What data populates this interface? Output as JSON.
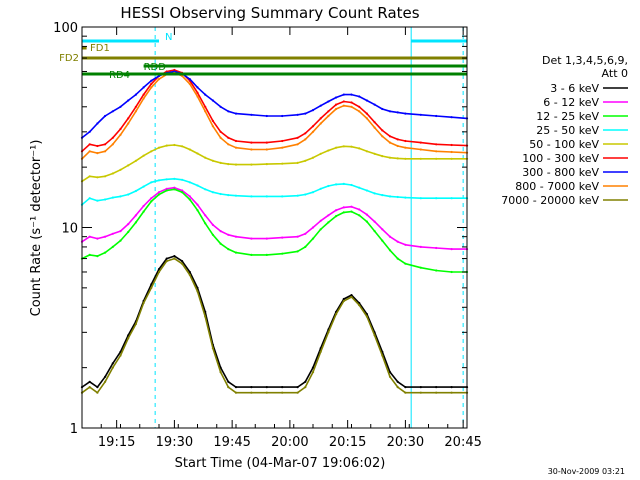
{
  "chart_data": {
    "type": "line",
    "title": "HESSI Observing Summary Count Rates",
    "xlabel": "Start Time (04-Mar-07 19:06:02)",
    "ylabel": "Count Rate (s⁻¹ detector⁻¹)",
    "footer_stamp": "30-Nov-2009 03:21",
    "x_unit": "minutes from 19:06:02",
    "xlim": [
      0,
      100
    ],
    "ylim": [
      1,
      100
    ],
    "yscale": "log",
    "grid": false,
    "legend_placement": "right",
    "xticks": [
      {
        "t": 9,
        "label": "19:15"
      },
      {
        "t": 24,
        "label": "19:30"
      },
      {
        "t": 39,
        "label": "19:45"
      },
      {
        "t": 54,
        "label": "20:00"
      },
      {
        "t": 69,
        "label": "20:15"
      },
      {
        "t": 84,
        "label": "20:30"
      },
      {
        "t": 99,
        "label": "20:45"
      }
    ],
    "yticks": [
      {
        "v": 1,
        "label": "1"
      },
      {
        "v": 10,
        "label": "10"
      },
      {
        "v": 100,
        "label": "100"
      }
    ],
    "legend_title": [
      "Det 1,3,4,5,6,9,",
      "Att 0"
    ],
    "series": [
      {
        "name": "3 - 6 keV",
        "color": "#000000",
        "t": [
          0,
          2,
          4,
          6,
          8,
          10,
          12,
          14,
          16,
          18,
          20,
          22,
          24,
          26,
          28,
          30,
          32,
          34,
          36,
          38,
          40,
          44,
          48,
          52,
          56,
          58,
          60,
          62,
          64,
          66,
          68,
          70,
          72,
          74,
          76,
          78,
          80,
          82,
          84,
          88,
          92,
          96,
          100
        ],
        "y": [
          1.6,
          1.7,
          1.6,
          1.8,
          2.1,
          2.4,
          2.9,
          3.4,
          4.3,
          5.2,
          6.2,
          7.0,
          7.2,
          6.8,
          6.0,
          5.0,
          3.8,
          2.6,
          2.0,
          1.7,
          1.6,
          1.6,
          1.6,
          1.6,
          1.6,
          1.7,
          2.0,
          2.5,
          3.1,
          3.8,
          4.4,
          4.6,
          4.2,
          3.7,
          3.0,
          2.4,
          1.9,
          1.7,
          1.6,
          1.6,
          1.6,
          1.6,
          1.6
        ]
      },
      {
        "name": "6 - 12 keV",
        "color": "#ff00ff",
        "t": [
          0,
          2,
          4,
          6,
          8,
          10,
          12,
          14,
          16,
          18,
          20,
          22,
          24,
          26,
          28,
          30,
          32,
          34,
          36,
          38,
          40,
          44,
          48,
          52,
          56,
          58,
          60,
          62,
          64,
          66,
          68,
          70,
          72,
          74,
          76,
          78,
          80,
          82,
          84,
          88,
          92,
          96,
          100
        ],
        "y": [
          8.5,
          9.0,
          8.8,
          9.0,
          9.3,
          9.6,
          10.4,
          11.5,
          12.8,
          14.0,
          15.0,
          15.6,
          15.8,
          15.3,
          14.3,
          13.0,
          11.5,
          10.3,
          9.6,
          9.2,
          9.0,
          8.8,
          8.8,
          8.9,
          9.0,
          9.3,
          10.0,
          10.8,
          11.5,
          12.2,
          12.6,
          12.7,
          12.3,
          11.6,
          10.7,
          9.8,
          9.0,
          8.5,
          8.2,
          8.0,
          7.9,
          7.8,
          7.8
        ]
      },
      {
        "name": "12 - 25 keV",
        "color": "#00ff00",
        "t": [
          0,
          2,
          4,
          6,
          8,
          10,
          12,
          14,
          16,
          18,
          20,
          22,
          24,
          26,
          28,
          30,
          32,
          34,
          36,
          38,
          40,
          44,
          48,
          52,
          56,
          58,
          60,
          62,
          64,
          66,
          68,
          70,
          72,
          74,
          76,
          78,
          80,
          82,
          84,
          88,
          92,
          96,
          100
        ],
        "y": [
          7.0,
          7.3,
          7.2,
          7.5,
          8.0,
          8.6,
          9.5,
          10.6,
          12.0,
          13.5,
          14.6,
          15.3,
          15.5,
          15.0,
          13.8,
          12.2,
          10.5,
          9.2,
          8.3,
          7.8,
          7.5,
          7.3,
          7.3,
          7.4,
          7.6,
          8.0,
          8.8,
          9.8,
          10.6,
          11.4,
          11.9,
          12.0,
          11.5,
          10.7,
          9.6,
          8.6,
          7.7,
          7.0,
          6.6,
          6.3,
          6.1,
          6.0,
          6.0
        ]
      },
      {
        "name": "25 - 50 keV",
        "color": "#00ffff",
        "t": [
          0,
          2,
          4,
          6,
          8,
          10,
          12,
          14,
          16,
          18,
          20,
          22,
          24,
          26,
          28,
          30,
          32,
          34,
          36,
          38,
          40,
          44,
          48,
          52,
          56,
          58,
          60,
          62,
          64,
          66,
          68,
          70,
          72,
          74,
          76,
          78,
          80,
          82,
          84,
          88,
          92,
          96,
          100
        ],
        "y": [
          13.0,
          14.0,
          13.6,
          13.8,
          14.1,
          14.3,
          14.6,
          15.2,
          16.0,
          16.8,
          17.2,
          17.4,
          17.5,
          17.3,
          16.8,
          16.2,
          15.5,
          15.0,
          14.7,
          14.5,
          14.4,
          14.3,
          14.3,
          14.3,
          14.4,
          14.6,
          15.0,
          15.6,
          16.1,
          16.4,
          16.5,
          16.3,
          15.8,
          15.3,
          14.8,
          14.5,
          14.3,
          14.2,
          14.1,
          14.0,
          14.0,
          14.0,
          14.0
        ]
      },
      {
        "name": "50 - 100 keV",
        "color": "#c8c800",
        "t": [
          0,
          2,
          4,
          6,
          8,
          10,
          12,
          14,
          16,
          18,
          20,
          22,
          24,
          26,
          28,
          30,
          32,
          34,
          36,
          38,
          40,
          44,
          48,
          52,
          56,
          58,
          60,
          62,
          64,
          66,
          68,
          70,
          72,
          74,
          76,
          78,
          80,
          82,
          84,
          88,
          92,
          96,
          100
        ],
        "y": [
          17.0,
          18.0,
          17.8,
          18.0,
          18.6,
          19.4,
          20.4,
          21.5,
          22.8,
          24.0,
          25.0,
          25.6,
          25.8,
          25.4,
          24.5,
          23.4,
          22.3,
          21.5,
          21.0,
          20.7,
          20.6,
          20.6,
          20.7,
          20.8,
          21.0,
          21.5,
          22.3,
          23.3,
          24.2,
          25.0,
          25.4,
          25.3,
          24.8,
          24.0,
          23.3,
          22.7,
          22.3,
          22.1,
          22.0,
          22.0,
          22.0,
          22.0,
          22.0
        ]
      },
      {
        "name": "100 - 300 keV",
        "color": "#ff0000",
        "t": [
          0,
          2,
          4,
          6,
          8,
          10,
          12,
          14,
          16,
          18,
          20,
          22,
          24,
          26,
          28,
          30,
          32,
          34,
          36,
          38,
          40,
          44,
          48,
          52,
          56,
          58,
          60,
          62,
          64,
          66,
          68,
          70,
          72,
          74,
          76,
          78,
          80,
          82,
          84,
          88,
          92,
          96,
          100
        ],
        "y": [
          24.0,
          26.0,
          25.5,
          26.0,
          28.0,
          31.0,
          35.0,
          40.0,
          46.0,
          52.0,
          57.0,
          60.0,
          61.0,
          59.0,
          54.0,
          47.0,
          40.0,
          34.0,
          30.0,
          28.0,
          27.0,
          26.5,
          26.5,
          27.0,
          28.0,
          29.5,
          32.0,
          35.0,
          38.0,
          41.0,
          42.5,
          42.0,
          40.0,
          37.0,
          33.5,
          30.5,
          28.5,
          27.5,
          27.0,
          26.5,
          26.0,
          25.8,
          25.6
        ]
      },
      {
        "name": "300 - 800 keV",
        "color": "#0000ff",
        "t": [
          0,
          2,
          4,
          6,
          8,
          10,
          12,
          14,
          16,
          18,
          20,
          22,
          24,
          26,
          28,
          30,
          32,
          34,
          36,
          38,
          40,
          44,
          48,
          52,
          56,
          58,
          60,
          62,
          64,
          66,
          68,
          70,
          72,
          74,
          76,
          78,
          80,
          82,
          84,
          88,
          92,
          96,
          100
        ],
        "y": [
          28.0,
          30.0,
          33.0,
          36.0,
          38.0,
          40.0,
          43.0,
          46.0,
          50.0,
          54.0,
          57.0,
          59.0,
          60.0,
          58.5,
          55.0,
          50.0,
          46.0,
          43.0,
          40.0,
          38.0,
          37.0,
          36.5,
          36.0,
          36.0,
          36.5,
          37.0,
          38.5,
          40.5,
          42.5,
          44.5,
          46.0,
          46.0,
          45.0,
          43.0,
          41.0,
          39.0,
          38.0,
          37.5,
          37.0,
          36.5,
          36.0,
          35.5,
          35.0
        ]
      },
      {
        "name": "800 - 7000 keV",
        "color": "#ff8000",
        "t": [
          0,
          2,
          4,
          6,
          8,
          10,
          12,
          14,
          16,
          18,
          20,
          22,
          24,
          26,
          28,
          30,
          32,
          34,
          36,
          38,
          40,
          44,
          48,
          52,
          56,
          58,
          60,
          62,
          64,
          66,
          68,
          70,
          72,
          74,
          76,
          78,
          80,
          82,
          84,
          88,
          92,
          96,
          100
        ],
        "y": [
          22.0,
          24.0,
          23.5,
          24.0,
          26.0,
          29.0,
          33.0,
          38.0,
          44.0,
          50.0,
          55.0,
          58.0,
          59.0,
          57.0,
          52.0,
          45.0,
          38.0,
          32.0,
          28.0,
          26.0,
          25.0,
          24.5,
          24.5,
          25.0,
          26.0,
          27.5,
          30.0,
          33.0,
          36.0,
          39.0,
          40.5,
          40.0,
          38.0,
          35.0,
          31.5,
          28.5,
          26.5,
          25.5,
          25.0,
          24.5,
          24.0,
          23.8,
          23.6
        ]
      },
      {
        "name": "7000 - 20000 keV",
        "color": "#808000",
        "t": [
          0,
          2,
          4,
          6,
          8,
          10,
          12,
          14,
          16,
          18,
          20,
          22,
          24,
          26,
          28,
          30,
          32,
          34,
          36,
          38,
          40,
          44,
          48,
          52,
          56,
          58,
          60,
          62,
          64,
          66,
          68,
          70,
          72,
          74,
          76,
          78,
          80,
          82,
          84,
          88,
          92,
          96,
          100
        ],
        "y": [
          1.5,
          1.6,
          1.5,
          1.7,
          2.0,
          2.3,
          2.8,
          3.3,
          4.2,
          5.0,
          6.0,
          6.8,
          7.0,
          6.6,
          5.8,
          4.8,
          3.6,
          2.5,
          1.9,
          1.6,
          1.5,
          1.5,
          1.5,
          1.5,
          1.5,
          1.6,
          1.9,
          2.4,
          3.0,
          3.7,
          4.3,
          4.5,
          4.1,
          3.6,
          2.9,
          2.3,
          1.8,
          1.6,
          1.5,
          1.5,
          1.5,
          1.5,
          1.5
        ]
      }
    ],
    "flags": [
      {
        "label": "N",
        "color": "#00e5ff",
        "segments": [
          [
            0,
            20
          ],
          [
            85.5,
            100
          ]
        ]
      },
      {
        "label": "FD1",
        "color": "#808000",
        "segments": [
          [
            0,
            1.2
          ]
        ]
      },
      {
        "label": "FD2",
        "color": "#808000",
        "segments": [
          [
            0,
            100
          ]
        ]
      },
      {
        "label": "RD4",
        "color": "#008000",
        "segments": [
          [
            0,
            100
          ]
        ]
      },
      {
        "label": "RDD",
        "color": "#008000",
        "segments": [
          [
            16,
            100
          ]
        ]
      }
    ],
    "vertical_markers": [
      {
        "t": 19.0,
        "color": "#00e5ff",
        "style": "dashed"
      },
      {
        "t": 85.5,
        "color": "#00e5ff",
        "style": "solid"
      },
      {
        "t": 99.0,
        "color": "#00e5ff",
        "style": "dashed"
      }
    ]
  }
}
